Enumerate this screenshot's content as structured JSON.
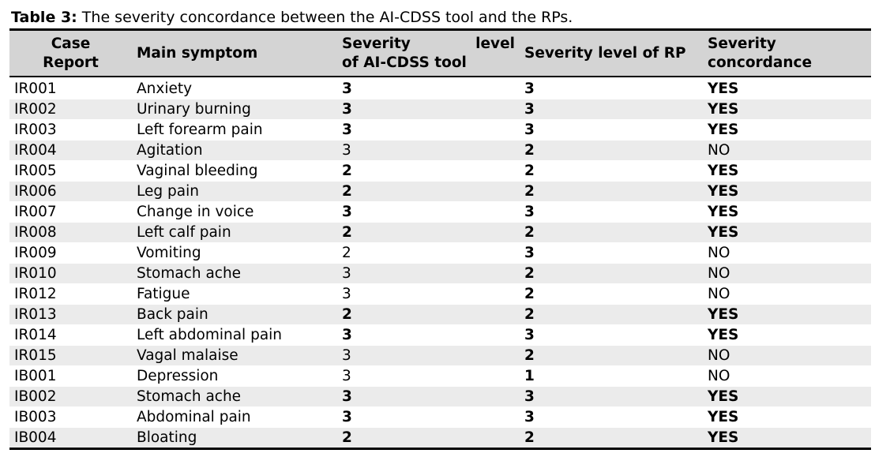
{
  "caption": {
    "label": "Table 3:",
    "text": " The severity concordance between the AI-CDSS tool and the RPs."
  },
  "headers": {
    "case_report_line1": "Case",
    "case_report_line2": "Report",
    "main_symptom": "Main symptom",
    "severity_ai_word1": "Severity",
    "severity_ai_word2": "level",
    "severity_ai_line2": "of AI-CDSS tool",
    "severity_rp": "Severity level of RP",
    "concordance_line1": "Severity",
    "concordance_line2": "concordance"
  },
  "rows": [
    {
      "case": "IR001",
      "symptom": "Anxiety",
      "ai": "3",
      "rp": "3",
      "conc": "YES"
    },
    {
      "case": "IR002",
      "symptom": "Urinary burning",
      "ai": "3",
      "rp": "3",
      "conc": "YES"
    },
    {
      "case": "IR003",
      "symptom": "Left forearm pain",
      "ai": "3",
      "rp": "3",
      "conc": "YES"
    },
    {
      "case": "IR004",
      "symptom": "Agitation",
      "ai": "3",
      "rp": "2",
      "conc": "NO"
    },
    {
      "case": "IR005",
      "symptom": "Vaginal bleeding",
      "ai": "2",
      "rp": "2",
      "conc": "YES"
    },
    {
      "case": "IR006",
      "symptom": "Leg pain",
      "ai": "2",
      "rp": "2",
      "conc": "YES"
    },
    {
      "case": "IR007",
      "symptom": "Change in voice",
      "ai": "3",
      "rp": "3",
      "conc": "YES"
    },
    {
      "case": "IR008",
      "symptom": "Left calf pain",
      "ai": "2",
      "rp": "2",
      "conc": "YES"
    },
    {
      "case": "IR009",
      "symptom": "Vomiting",
      "ai": "2",
      "rp": "3",
      "conc": "NO"
    },
    {
      "case": "IR010",
      "symptom": "Stomach ache",
      "ai": "3",
      "rp": "2",
      "conc": "NO"
    },
    {
      "case": "IR012",
      "symptom": "Fatigue",
      "ai": "3",
      "rp": "2",
      "conc": "NO"
    },
    {
      "case": "IR013",
      "symptom": "Back pain",
      "ai": "2",
      "rp": "2",
      "conc": "YES"
    },
    {
      "case": "IR014",
      "symptom": "Left abdominal pain",
      "ai": "3",
      "rp": "3",
      "conc": "YES"
    },
    {
      "case": "IR015",
      "symptom": "Vagal malaise",
      "ai": "3",
      "rp": "2",
      "conc": "NO"
    },
    {
      "case": "IB001",
      "symptom": "Depression",
      "ai": "3",
      "rp": "1",
      "conc": "NO"
    },
    {
      "case": "IB002",
      "symptom": "Stomach ache",
      "ai": "3",
      "rp": "3",
      "conc": "YES"
    },
    {
      "case": "IB003",
      "symptom": "Abdominal pain",
      "ai": "3",
      "rp": "3",
      "conc": "YES"
    },
    {
      "case": "IB004",
      "symptom": "Bloating",
      "ai": "2",
      "rp": "2",
      "conc": "YES"
    }
  ]
}
